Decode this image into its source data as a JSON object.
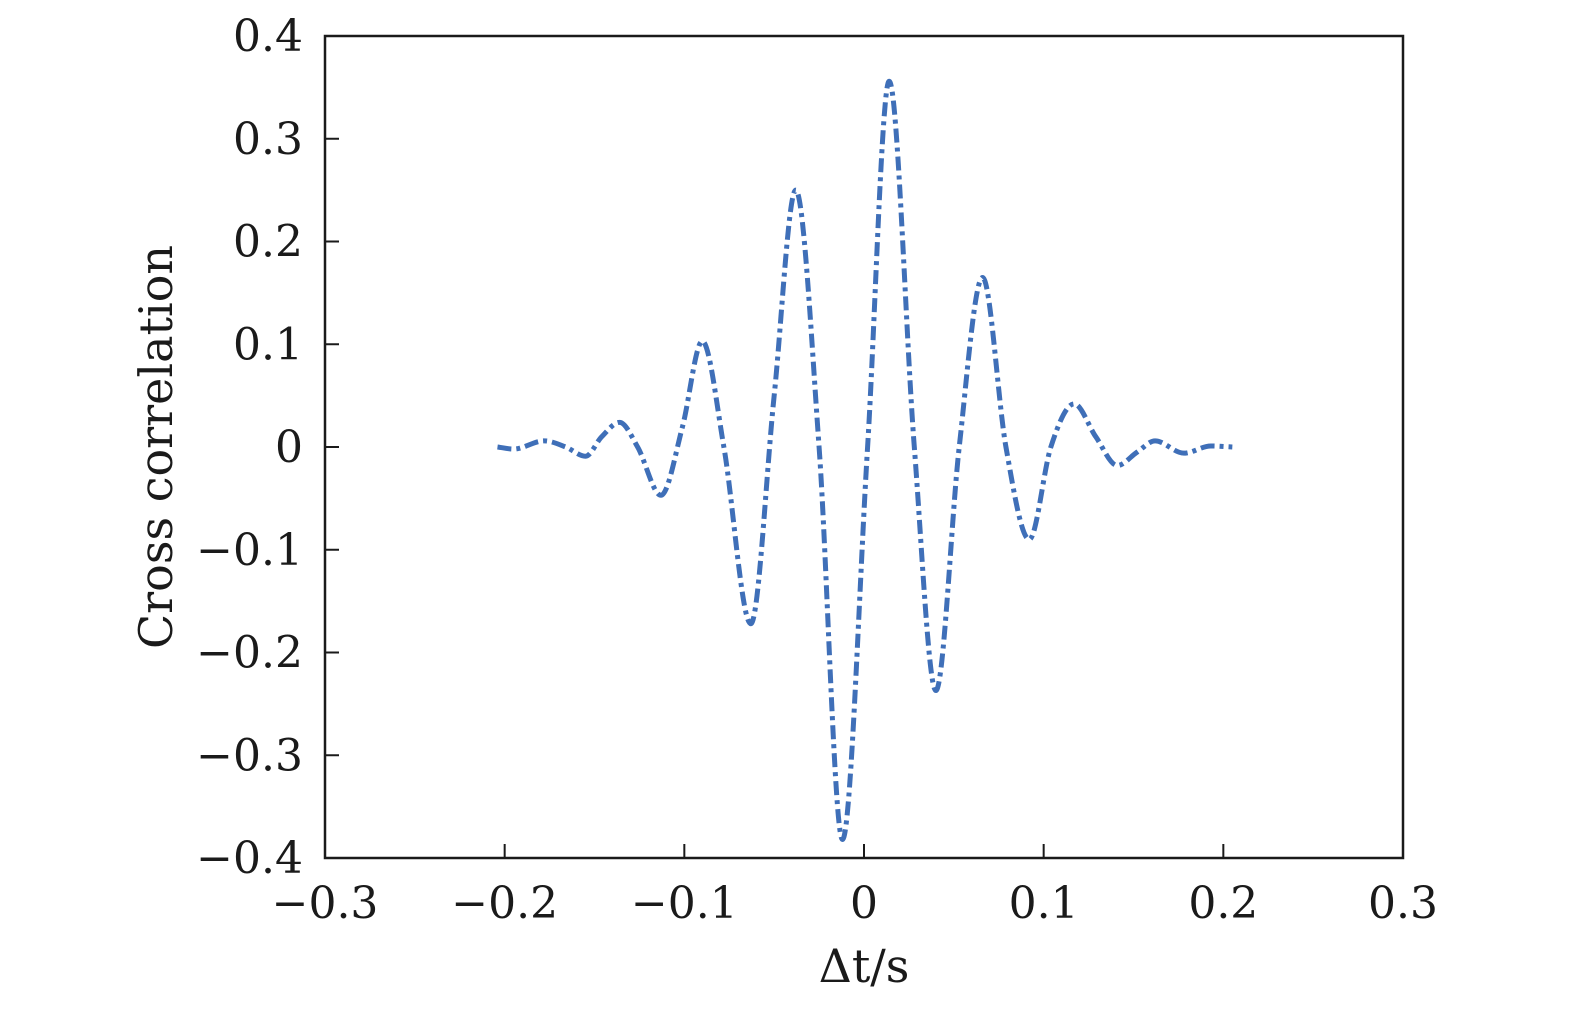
{
  "chart_data": {
    "type": "line",
    "title": "",
    "xlabel": "Δt/s",
    "ylabel": "Cross correlation",
    "xlim": [
      -0.3,
      0.3
    ],
    "ylim": [
      -0.4,
      0.4
    ],
    "x_ticks": [
      -0.3,
      -0.2,
      -0.1,
      0,
      0.1,
      0.2,
      0.3
    ],
    "x_tick_labels": [
      "−0.3",
      "−0.2",
      "−0.1",
      "0",
      "0.1",
      "0.2",
      "0.3"
    ],
    "y_ticks": [
      0.4,
      0.3,
      0.2,
      0.1,
      0,
      -0.1,
      -0.2,
      -0.3,
      -0.4
    ],
    "y_tick_labels": [
      "0.4",
      "0.3",
      "0.2",
      "0.1",
      "0",
      "−0.1",
      "−0.2",
      "−0.3",
      "−0.4"
    ],
    "grid": false,
    "legend": "none",
    "series": [
      {
        "color": "#3f6fb8",
        "line_style": "dash-dot",
        "points": [
          {
            "x": -0.204,
            "y": 0.0
          },
          {
            "x": -0.195,
            "y": -0.002
          },
          {
            "x": -0.178,
            "y": 0.006
          },
          {
            "x": -0.166,
            "y": 0.0
          },
          {
            "x": -0.155,
            "y": -0.009
          },
          {
            "x": -0.146,
            "y": 0.01
          },
          {
            "x": -0.136,
            "y": 0.024
          },
          {
            "x": -0.126,
            "y": 0.0
          },
          {
            "x": -0.113,
            "y": -0.047
          },
          {
            "x": -0.101,
            "y": 0.02
          },
          {
            "x": -0.09,
            "y": 0.103
          },
          {
            "x": -0.078,
            "y": 0.0
          },
          {
            "x": -0.063,
            "y": -0.172
          },
          {
            "x": -0.05,
            "y": 0.05
          },
          {
            "x": -0.038,
            "y": 0.25
          },
          {
            "x": -0.025,
            "y": 0.0
          },
          {
            "x": -0.012,
            "y": -0.382
          },
          {
            "x": 0.002,
            "y": 0.0
          },
          {
            "x": 0.014,
            "y": 0.356
          },
          {
            "x": 0.028,
            "y": 0.0
          },
          {
            "x": 0.04,
            "y": -0.237
          },
          {
            "x": 0.053,
            "y": 0.0
          },
          {
            "x": 0.066,
            "y": 0.165
          },
          {
            "x": 0.079,
            "y": 0.0
          },
          {
            "x": 0.092,
            "y": -0.09
          },
          {
            "x": 0.104,
            "y": 0.0
          },
          {
            "x": 0.117,
            "y": 0.042
          },
          {
            "x": 0.129,
            "y": 0.01
          },
          {
            "x": 0.141,
            "y": -0.018
          },
          {
            "x": 0.152,
            "y": -0.005
          },
          {
            "x": 0.162,
            "y": 0.006
          },
          {
            "x": 0.178,
            "y": -0.006
          },
          {
            "x": 0.193,
            "y": 0.001
          },
          {
            "x": 0.205,
            "y": 0.0
          }
        ]
      }
    ]
  }
}
